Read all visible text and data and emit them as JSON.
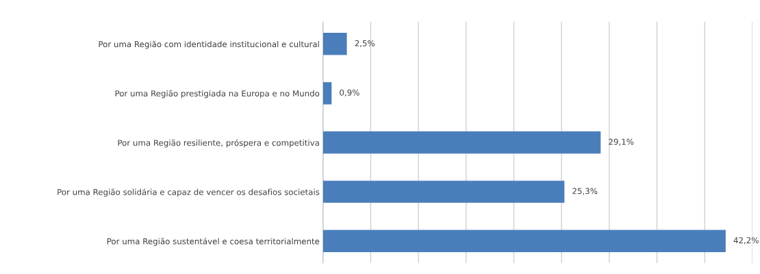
{
  "chart_data": {
    "type": "bar",
    "orientation": "horizontal",
    "categories": [
      "Por uma Região com identidade institucional e cultural",
      "Por uma Região prestigiada na Europa e no Mundo",
      "Por uma Região resiliente, próspera e competitiva",
      "Por uma Região solidária e capaz de vencer os desafios societais",
      "Por uma Região sustentável e coesa territorialmente"
    ],
    "values": [
      2.5,
      0.9,
      29.1,
      25.3,
      42.2
    ],
    "value_labels": [
      "2,5%",
      "0,9%",
      "29,1%",
      "25,3%",
      "42,2%"
    ],
    "color": "#4a7ebb",
    "xlim": [
      0,
      45
    ],
    "xticks": [
      {
        "value": 0,
        "label": null
      },
      {
        "value": 5,
        "label": null
      },
      {
        "value": 10,
        "label": null
      },
      {
        "value": 15,
        "label": null
      },
      {
        "value": 20,
        "label": null
      },
      {
        "value": 25,
        "label": null
      },
      {
        "value": 30,
        "label": null
      },
      {
        "value": 35,
        "label": null
      },
      {
        "value": 40,
        "label": null
      },
      {
        "value": 45,
        "label": null
      }
    ],
    "grid": "x",
    "tick_labels": "y"
  }
}
